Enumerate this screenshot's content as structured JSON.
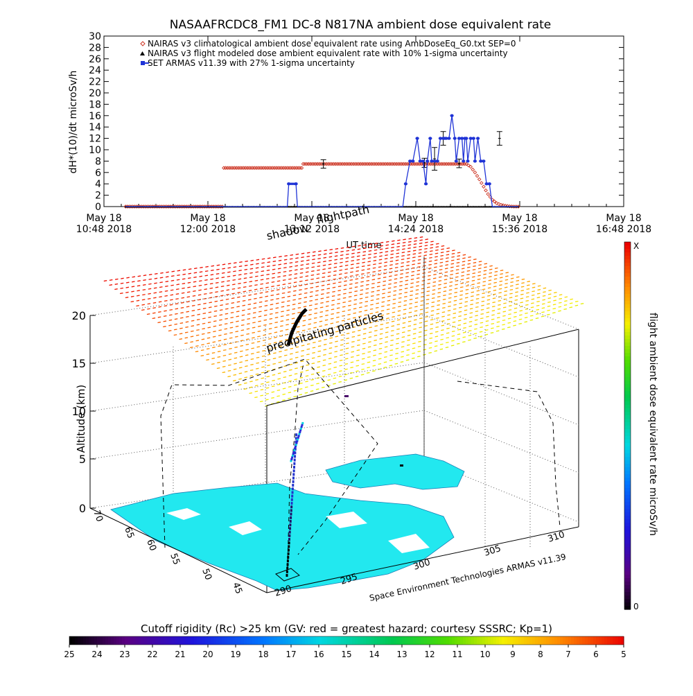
{
  "chart_data": [
    {
      "type": "scatter",
      "title": "NASAAFRCDC8_FM1 DC-8    N817NA ambient dose equivalent rate",
      "xlabel": "UT time",
      "ylabel": "dH*(10)/dt microSv/h",
      "ylim": [
        0,
        30
      ],
      "y_ticks": [
        0,
        2,
        4,
        6,
        8,
        10,
        12,
        14,
        16,
        18,
        20,
        22,
        24,
        26,
        28,
        30
      ],
      "x_range_min": [
        648,
        1008
      ],
      "x_ticks": [
        {
          "t": 648,
          "l1": "May 18",
          "l2": "10:48 2018"
        },
        {
          "t": 720,
          "l1": "May 18",
          "l2": "12:00 2018"
        },
        {
          "t": 792,
          "l1": "May 18",
          "l2": "13:12 2018"
        },
        {
          "t": 864,
          "l1": "May 18",
          "l2": "14:24 2018"
        },
        {
          "t": 936,
          "l1": "May 18",
          "l2": "15:36 2018"
        },
        {
          "t": 1008,
          "l1": "May 18",
          "l2": "16:48 2018"
        }
      ],
      "legend_position": "top-left",
      "series": [
        {
          "name": "NAIRAS v3 climatological ambient dose equivalent rate using AmbDoseEq_G0.txt SEP=0",
          "color": "#cc3322",
          "marker": "diamond",
          "x": [
            663,
            730,
            731,
            785,
            786,
            899,
            902,
            905,
            908,
            911,
            914,
            917,
            920,
            923,
            926,
            929,
            932,
            935
          ],
          "y": [
            0,
            0,
            6.8,
            6.8,
            7.5,
            7.5,
            7.0,
            6.0,
            4.8,
            3.5,
            2.2,
            1.2,
            0.6,
            0.3,
            0.15,
            0.05,
            0.0,
            0.0
          ]
        },
        {
          "name": "NAIRAS v3 flight modeled dose ambient equivalent rate with 10% 1-sigma uncertainty",
          "color": "#000000",
          "marker": "triangle",
          "x": [
            663,
            935
          ],
          "y": [
            0,
            0
          ],
          "errorbars": [
            {
              "x": 800,
              "y": 7.5,
              "err": 0.75
            },
            {
              "x": 870,
              "y": 7.7,
              "err": 0.8
            },
            {
              "x": 877,
              "y": 8.4,
              "err": 2.0
            },
            {
              "x": 883,
              "y": 12.0,
              "err": 1.2
            },
            {
              "x": 894,
              "y": 7.6,
              "err": 0.76
            },
            {
              "x": 922,
              "y": 12.0,
              "err": 1.2
            }
          ]
        },
        {
          "name": "SET ARMAS v11.39 with 27% 1-sigma uncertainty",
          "color": "#1f33d6",
          "marker": "square",
          "x": [
            663,
            775,
            776,
            781,
            782,
            855,
            857,
            860,
            862,
            865,
            867,
            869,
            871,
            872,
            874,
            875,
            877,
            879,
            881,
            883,
            884,
            885,
            887,
            889,
            891,
            892,
            894,
            896,
            897,
            898,
            899,
            900,
            902,
            904,
            905,
            907,
            909,
            911,
            913,
            915,
            917,
            919,
            921,
            925,
            935
          ],
          "y": [
            0,
            0,
            4,
            4,
            0,
            0,
            4,
            8,
            8,
            12,
            8,
            8,
            4,
            8,
            12,
            8,
            8,
            8,
            12,
            12,
            12,
            12,
            12,
            16,
            12,
            8,
            12,
            12,
            8,
            12,
            12,
            8,
            12,
            12,
            8,
            12,
            8,
            8,
            4,
            4,
            0,
            0,
            0,
            0,
            0
          ]
        }
      ]
    },
    {
      "type": "3d-flightpath",
      "xlabel": "",
      "ylabel": "",
      "zlabel": "Altitude (km)",
      "z_ticks": [
        "0",
        "5",
        "10",
        "15",
        "20"
      ],
      "lat_ticks": [
        "70",
        "65",
        "60",
        "55",
        "50",
        "45"
      ],
      "lon_ticks": [
        "290",
        "295",
        "300",
        "305",
        "310"
      ],
      "annotations": {
        "shadow": "shadow",
        "flightpath": "flightpath",
        "precip": "precipitating particles",
        "credit": "Space Environment Technologies ARMAS v11.39"
      },
      "colorbar": {
        "title": "flight ambient dose equivalent rate microSv/h",
        "top_label": "X",
        "bottom_label": "0"
      },
      "cutoff_bar": {
        "title": "Cutoff rigidity (Rc) >25 km (GV: red = greatest hazard; courtesy SSSRC; Kp=1)",
        "labels": [
          "25",
          "24",
          "23",
          "22",
          "21",
          "20",
          "19",
          "18",
          "17",
          "16",
          "15",
          "14",
          "13",
          "12",
          "11",
          "10",
          "9",
          "8",
          "7",
          "6",
          "5"
        ]
      }
    }
  ]
}
